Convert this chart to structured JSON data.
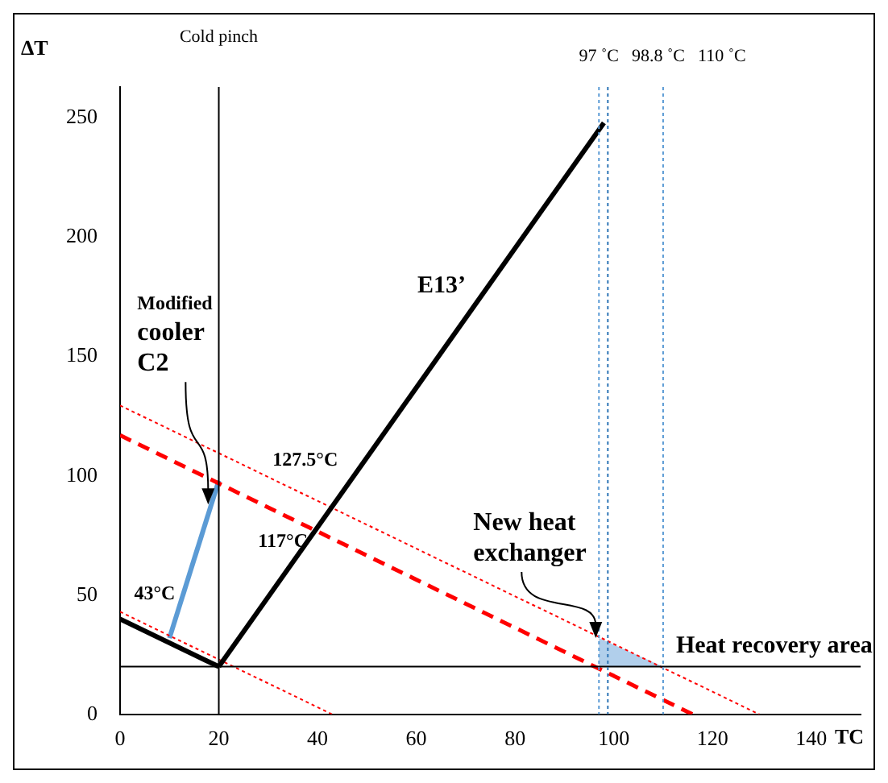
{
  "chart_data": {
    "type": "line",
    "xlabel": "TC",
    "ylabel": "ΔT",
    "xlim": [
      0,
      150
    ],
    "ylim": [
      0,
      263
    ],
    "xticks": [
      0,
      20,
      40,
      60,
      80,
      100,
      120,
      140
    ],
    "yticks": [
      0,
      50,
      100,
      150,
      200,
      250
    ],
    "grid": false,
    "legend": false,
    "marker": "none",
    "series": [
      {
        "name": "E13’",
        "color": "#000000",
        "line_style": "solid",
        "x": [
          98,
          20
        ],
        "values": [
          248,
          20
        ]
      },
      {
        "color": "#000000",
        "line_style": "solid",
        "x": [
          0,
          20
        ],
        "values": [
          40,
          20
        ]
      },
      {
        "color": "#ff0000",
        "line_style": "dashed",
        "x": [
          0,
          116
        ],
        "values": [
          117,
          0
        ]
      },
      {
        "color": "#ff0000",
        "line_style": "dotted",
        "x": [
          0,
          129.5
        ],
        "values": [
          129.5,
          0
        ]
      },
      {
        "color": "#ff0000",
        "line_style": "dotted",
        "x": [
          0,
          43
        ],
        "values": [
          43,
          0
        ]
      },
      {
        "color": "#5b9bd5",
        "line_style": "solid",
        "x": [
          20,
          10
        ],
        "values": [
          98,
          32
        ]
      },
      {
        "type": "area",
        "name": "Heat recovery area",
        "color": "#9dc3e6",
        "x": [
          97,
          97,
          110
        ],
        "values": [
          20,
          32,
          20
        ]
      }
    ],
    "ref_lines": [
      {
        "axis": "x",
        "value": 20,
        "label": "Cold pinch",
        "color": "#000000",
        "line_style": "solid"
      },
      {
        "axis": "y",
        "value": 20,
        "label": null,
        "color": "#000000",
        "line_style": "solid"
      },
      {
        "axis": "x",
        "value": 97,
        "label": "97 ˚C",
        "color": "#5b9bd5",
        "line_style": "dotted"
      },
      {
        "axis": "x",
        "value": 98.8,
        "label": "98.8 ˚C",
        "color": "#2e75b6",
        "line_style": "dotted"
      },
      {
        "axis": "x",
        "value": 110,
        "label": "110 ˚C",
        "color": "#5b9bd5",
        "line_style": "dotted"
      }
    ],
    "annotations": [
      {
        "text": "127.5°C",
        "x": 37.5,
        "y": 92
      },
      {
        "text": "117°C",
        "x": 33,
        "y": 58
      },
      {
        "text": "43°C",
        "x": 7,
        "y": 36
      },
      {
        "text": "Modified\ncooler\nC2",
        "x": 18.5,
        "y": 88
      },
      {
        "text": "New heat\nexchanger",
        "x": 97,
        "y": 32
      }
    ]
  }
}
